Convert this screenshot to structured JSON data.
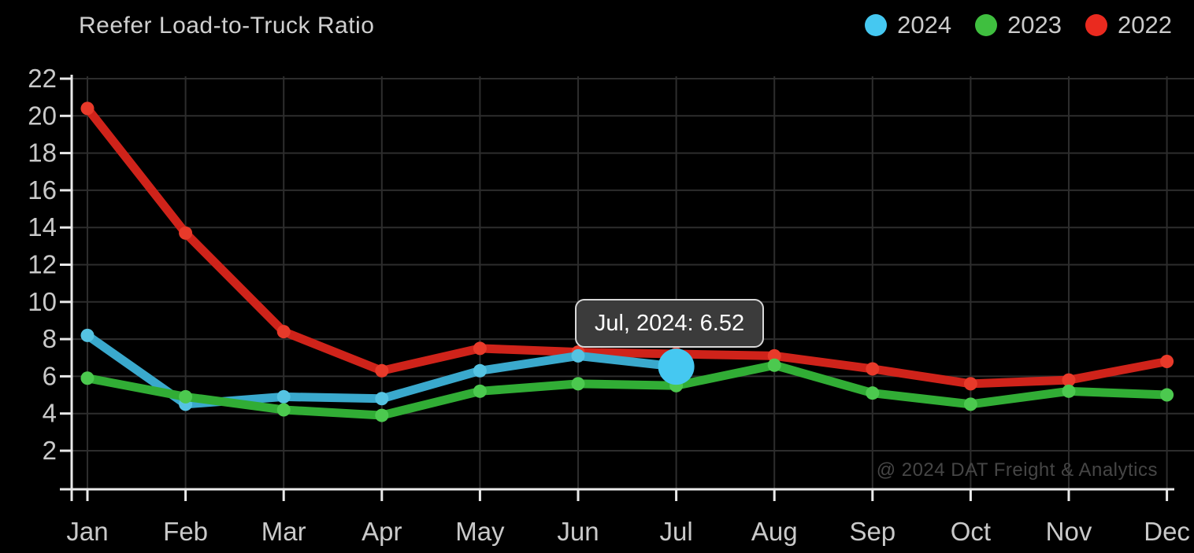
{
  "title": "Reefer Load-to-Truck Ratio",
  "legend": [
    {
      "label": "2024",
      "color": "#45c8f1"
    },
    {
      "label": "2023",
      "color": "#3fbf3f"
    },
    {
      "label": "2022",
      "color": "#ea2a1f"
    }
  ],
  "tooltip": {
    "label": "Jul, 2024: 6.52"
  },
  "watermark": "@ 2024 DAT Freight & Analytics",
  "colors": {
    "background": "#000000",
    "gridline": "#2d2d2d",
    "axis": "#e9e9e9",
    "tick_label": "#c9c9c9",
    "tooltip_bg": "#3b3b3b",
    "tooltip_border": "#d8d8d8"
  },
  "chart_data": {
    "type": "line",
    "title": "Reefer Load-to-Truck Ratio",
    "categories": [
      "Jan",
      "Feb",
      "Mar",
      "Apr",
      "May",
      "Jun",
      "Jul",
      "Aug",
      "Sep",
      "Oct",
      "Nov",
      "Dec"
    ],
    "series": [
      {
        "name": "2024",
        "line_color": "#3aa9cd",
        "marker_color": "#55c3e2",
        "values": [
          8.2,
          4.5,
          4.9,
          4.8,
          6.3,
          7.1,
          6.52
        ]
      },
      {
        "name": "2023",
        "line_color": "#31ad35",
        "marker_color": "#4cc94f",
        "values": [
          5.9,
          4.9,
          4.2,
          3.9,
          5.2,
          5.6,
          5.5,
          6.6,
          5.1,
          4.5,
          5.2,
          5.0
        ]
      },
      {
        "name": "2022",
        "line_color": "#cf231a",
        "marker_color": "#e83a2a",
        "values": [
          20.4,
          13.7,
          8.4,
          6.3,
          7.5,
          7.3,
          7.2,
          7.1,
          6.4,
          5.6,
          5.8,
          6.8
        ]
      }
    ],
    "highlight": {
      "series": "2024",
      "category": "Jul",
      "value": 6.52,
      "color": "#45c8f1"
    },
    "draw_order": [
      "2022",
      "2024",
      "2023"
    ],
    "xlabel": "",
    "ylabel": "",
    "yticks": [
      2,
      4,
      6,
      8,
      10,
      12,
      14,
      16,
      18,
      20,
      22
    ],
    "ylim": [
      0,
      23
    ],
    "grid": true,
    "legend_position": "top-right"
  }
}
